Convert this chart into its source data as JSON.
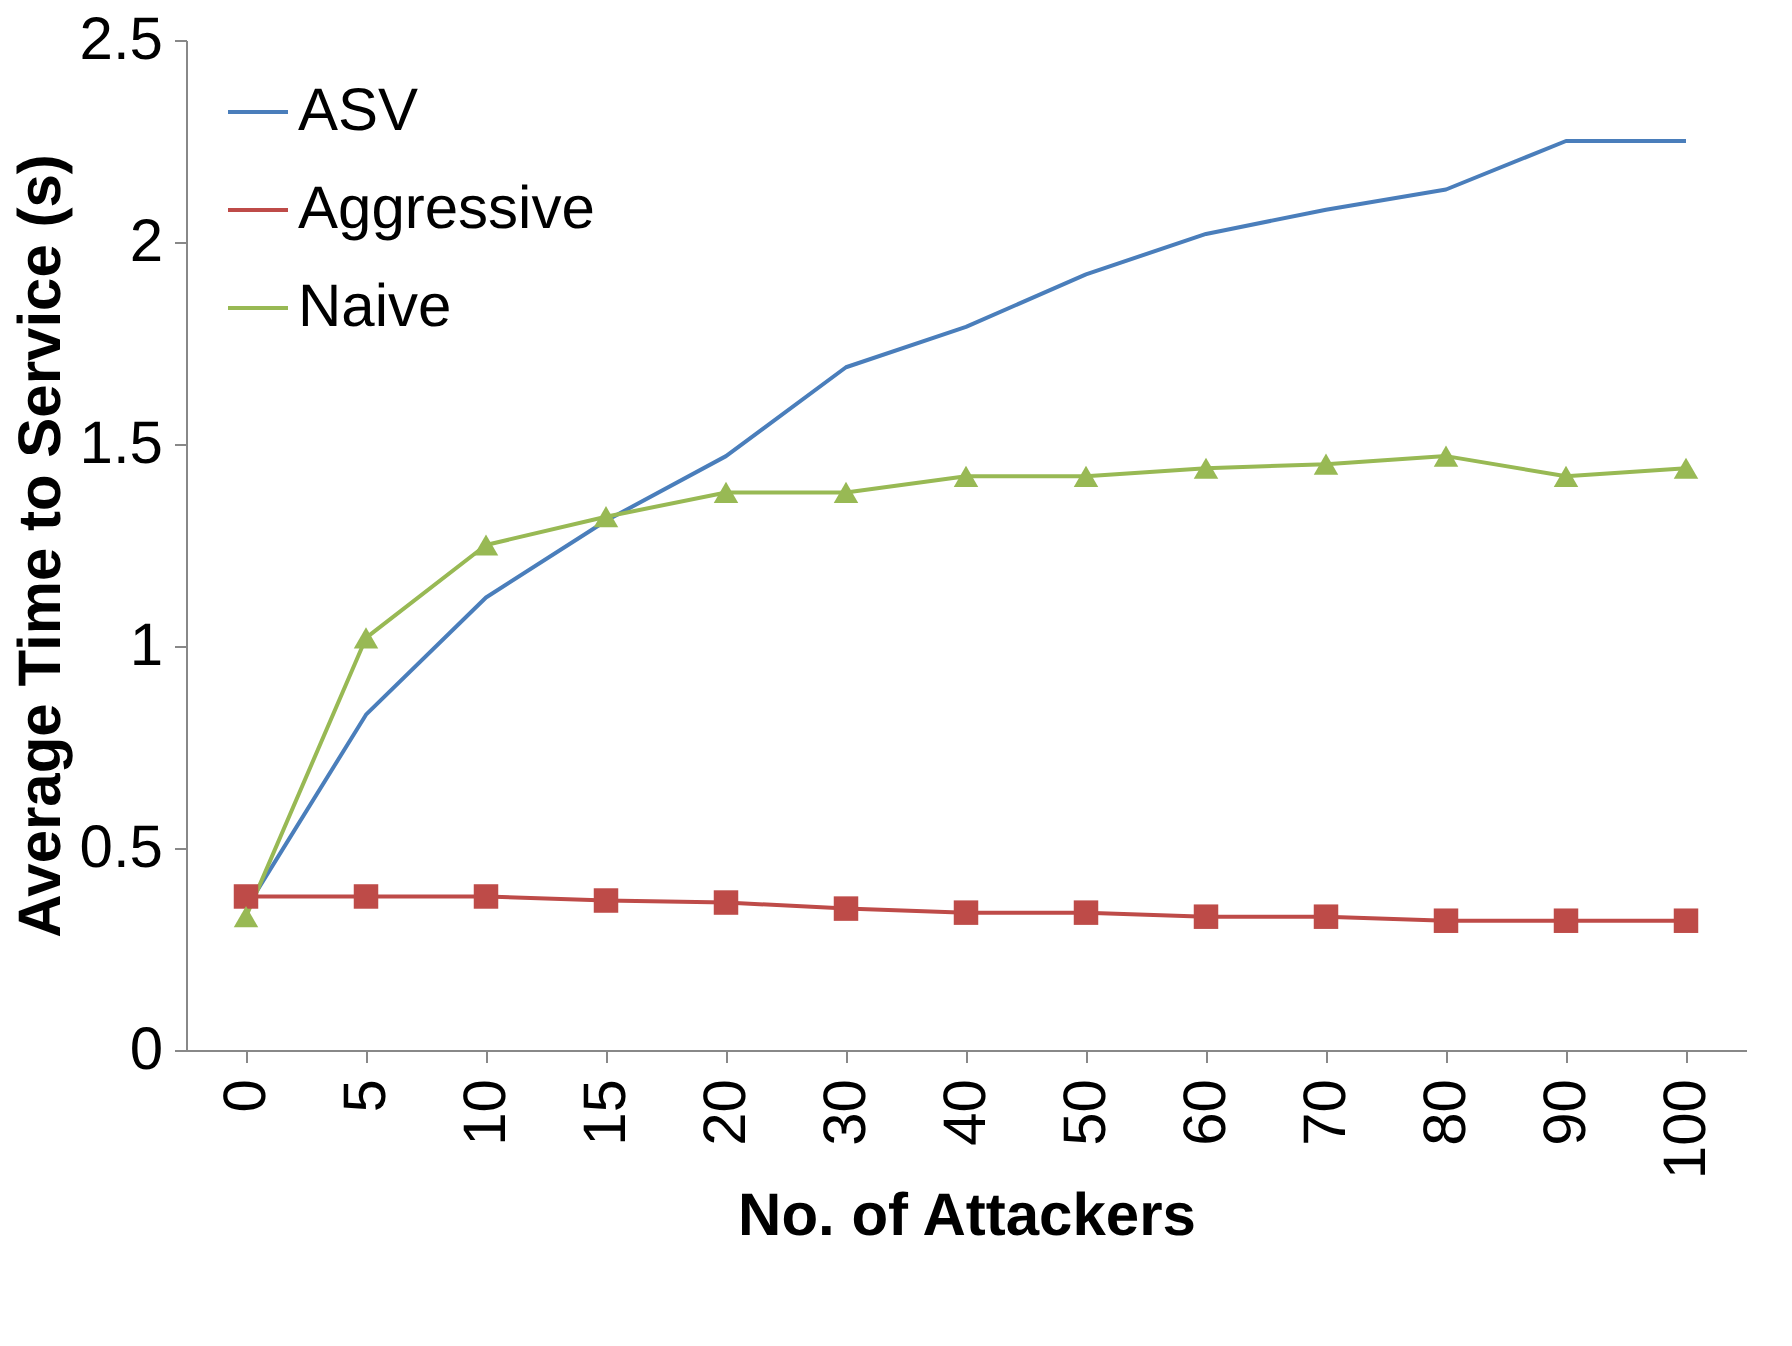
{
  "chart_data": {
    "type": "line",
    "xlabel": "No. of Attackers",
    "ylabel": "Average Time to Service (s)",
    "categories": [
      "0",
      "5",
      "10",
      "15",
      "20",
      "30",
      "40",
      "50",
      "60",
      "70",
      "80",
      "90",
      "100"
    ],
    "ylim": [
      0,
      2.5
    ],
    "yticks": [
      0,
      0.5,
      1,
      1.5,
      2,
      2.5
    ],
    "grid": false,
    "legend": "top left",
    "series": [
      {
        "name": "ASV",
        "color": "#4a7ebb",
        "marker": "none",
        "values": [
          0.35,
          0.83,
          1.12,
          1.31,
          1.47,
          1.69,
          1.79,
          1.92,
          2.02,
          2.08,
          2.13,
          2.25,
          2.25
        ]
      },
      {
        "name": "Aggressive",
        "color": "#be4b48",
        "marker": "square",
        "values": [
          0.38,
          0.38,
          0.38,
          0.37,
          0.365,
          0.35,
          0.34,
          0.34,
          0.33,
          0.33,
          0.32,
          0.32,
          0.32
        ]
      },
      {
        "name": "Naive",
        "color": "#98b954",
        "marker": "triangle",
        "values": [
          0.33,
          1.02,
          1.25,
          1.32,
          1.38,
          1.38,
          1.42,
          1.42,
          1.44,
          1.45,
          1.47,
          1.42,
          1.44
        ]
      }
    ]
  }
}
